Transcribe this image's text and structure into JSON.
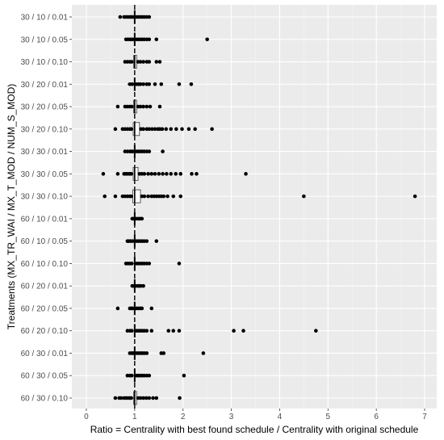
{
  "chart_data": {
    "type": "boxplot",
    "orientation": "horizontal",
    "xlabel": "Ratio = Centrality with best found schedule / Centrality with original schedule",
    "ylabel": "Treatments (MX_TR_WAI / MX_T_MOD / NUM_S_MOD)",
    "xlim": [
      -0.3,
      7.25
    ],
    "xticks": [
      "0",
      "1",
      "2",
      "3",
      "4",
      "5",
      "6",
      "7"
    ],
    "reference_line_x": 1,
    "grid": true,
    "background": "#ebebeb",
    "categories": [
      "30 / 10 / 0.01",
      "30 / 10 / 0.05",
      "30 / 10 / 0.10",
      "30 / 20 / 0.01",
      "30 / 20 / 0.05",
      "30 / 20 / 0.10",
      "30 / 30 / 0.01",
      "30 / 30 / 0.05",
      "30 / 30 / 0.10",
      "60 / 10 / 0.01",
      "60 / 10 / 0.05",
      "60 / 10 / 0.10",
      "60 / 20 / 0.01",
      "60 / 20 / 0.05",
      "60 / 20 / 0.10",
      "60 / 30 / 0.01",
      "60 / 30 / 0.05",
      "60 / 30 / 0.10"
    ],
    "boxes": [
      {
        "q1": 0.99,
        "median": 1.0,
        "q3": 1.01,
        "wmin": 0.85,
        "wmax": 1.2,
        "points": [
          0.7,
          0.78,
          0.82,
          0.86,
          0.9,
          0.93,
          0.96,
          1.04,
          1.08,
          1.12,
          1.16,
          1.2,
          1.25,
          1.3
        ]
      },
      {
        "q1": 0.99,
        "median": 1.0,
        "q3": 1.01,
        "wmin": 0.85,
        "wmax": 1.2,
        "points": [
          0.82,
          0.86,
          0.9,
          0.93,
          0.96,
          1.04,
          1.08,
          1.12,
          1.16,
          1.2,
          1.25,
          1.3,
          1.45,
          2.5
        ]
      },
      {
        "q1": 0.98,
        "median": 1.0,
        "q3": 1.04,
        "wmin": 0.85,
        "wmax": 1.25,
        "points": [
          0.8,
          0.85,
          0.9,
          0.94,
          1.07,
          1.12,
          1.18,
          1.25,
          1.3,
          1.45,
          1.52
        ]
      },
      {
        "q1": 0.99,
        "median": 1.0,
        "q3": 1.01,
        "wmin": 0.85,
        "wmax": 1.2,
        "points": [
          0.9,
          0.95,
          1.04,
          1.08,
          1.12,
          1.18,
          1.25,
          1.3,
          1.42,
          1.55,
          1.92,
          2.17
        ]
      },
      {
        "q1": 0.98,
        "median": 1.0,
        "q3": 1.04,
        "wmin": 0.85,
        "wmax": 1.25,
        "points": [
          0.65,
          0.8,
          0.85,
          0.9,
          0.94,
          1.07,
          1.12,
          1.18,
          1.25,
          1.32,
          1.52
        ]
      },
      {
        "q1": 0.97,
        "median": 1.0,
        "q3": 1.1,
        "wmin": 0.8,
        "wmax": 1.3,
        "points": [
          0.6,
          0.75,
          0.8,
          0.85,
          0.9,
          0.93,
          1.13,
          1.18,
          1.25,
          1.3,
          1.36,
          1.42,
          1.48,
          1.52,
          1.57,
          1.65,
          1.75,
          1.86,
          1.98,
          2.12,
          2.25,
          2.6
        ]
      },
      {
        "q1": 0.99,
        "median": 1.0,
        "q3": 1.01,
        "wmin": 0.85,
        "wmax": 1.2,
        "points": [
          0.8,
          0.85,
          0.9,
          0.93,
          0.96,
          1.04,
          1.08,
          1.12,
          1.16,
          1.2,
          1.25,
          1.3,
          1.58
        ]
      },
      {
        "q1": 0.97,
        "median": 1.0,
        "q3": 1.07,
        "wmin": 0.8,
        "wmax": 1.3,
        "points": [
          0.35,
          0.65,
          0.78,
          0.82,
          0.86,
          0.9,
          0.93,
          1.1,
          1.15,
          1.2,
          1.28,
          1.35,
          1.42,
          1.5,
          1.58,
          1.66,
          1.75,
          1.85,
          1.95,
          2.18,
          2.28,
          3.3
        ]
      },
      {
        "q1": 0.96,
        "median": 1.0,
        "q3": 1.12,
        "wmin": 0.75,
        "wmax": 1.35,
        "points": [
          0.38,
          0.6,
          0.75,
          0.8,
          0.85,
          0.9,
          0.93,
          1.15,
          1.2,
          1.28,
          1.35,
          1.4,
          1.45,
          1.5,
          1.55,
          1.6,
          1.68,
          1.8,
          1.95,
          4.5,
          6.8
        ]
      },
      {
        "q1": 0.99,
        "median": 1.0,
        "q3": 1.01,
        "wmin": 0.95,
        "wmax": 1.15,
        "points": [
          0.95,
          0.98,
          1.03,
          1.07,
          1.1,
          1.13,
          1.15
        ]
      },
      {
        "q1": 0.99,
        "median": 1.0,
        "q3": 1.01,
        "wmin": 0.85,
        "wmax": 1.25,
        "points": [
          0.85,
          0.88,
          0.92,
          0.96,
          1.04,
          1.08,
          1.12,
          1.16,
          1.2,
          1.25,
          1.45
        ]
      },
      {
        "q1": 0.99,
        "median": 1.0,
        "q3": 1.01,
        "wmin": 0.85,
        "wmax": 1.25,
        "points": [
          0.82,
          0.86,
          0.9,
          0.94,
          1.04,
          1.08,
          1.12,
          1.16,
          1.2,
          1.25,
          1.3,
          1.92
        ]
      },
      {
        "q1": 0.99,
        "median": 1.0,
        "q3": 1.01,
        "wmin": 0.95,
        "wmax": 1.15,
        "points": [
          0.95,
          0.98,
          1.03,
          1.07,
          1.1,
          1.13,
          1.18
        ]
      },
      {
        "q1": 0.99,
        "median": 1.0,
        "q3": 1.01,
        "wmin": 0.9,
        "wmax": 1.15,
        "points": [
          0.65,
          0.9,
          0.93,
          0.96,
          1.04,
          1.08,
          1.12,
          1.15,
          1.35
        ]
      },
      {
        "q1": 0.99,
        "median": 1.0,
        "q3": 1.01,
        "wmin": 0.85,
        "wmax": 1.25,
        "points": [
          0.85,
          0.9,
          0.94,
          1.04,
          1.08,
          1.12,
          1.16,
          1.2,
          1.25,
          1.35,
          1.7,
          1.8,
          1.92,
          3.05,
          3.25,
          4.75
        ]
      },
      {
        "q1": 0.99,
        "median": 1.0,
        "q3": 1.01,
        "wmin": 0.9,
        "wmax": 1.25,
        "points": [
          0.9,
          0.94,
          0.97,
          1.04,
          1.08,
          1.12,
          1.16,
          1.2,
          1.25,
          1.55,
          1.6,
          2.42
        ]
      },
      {
        "q1": 0.99,
        "median": 1.0,
        "q3": 1.01,
        "wmin": 0.85,
        "wmax": 1.25,
        "points": [
          0.85,
          0.9,
          0.94,
          1.04,
          1.08,
          1.12,
          1.16,
          1.2,
          1.25,
          1.3,
          2.02
        ]
      },
      {
        "q1": 0.98,
        "median": 1.0,
        "q3": 1.04,
        "wmin": 0.7,
        "wmax": 1.35,
        "points": [
          0.6,
          0.68,
          0.72,
          0.78,
          0.82,
          0.86,
          0.9,
          0.93,
          1.07,
          1.12,
          1.18,
          1.24,
          1.3,
          1.38,
          1.45,
          1.93
        ]
      }
    ]
  }
}
